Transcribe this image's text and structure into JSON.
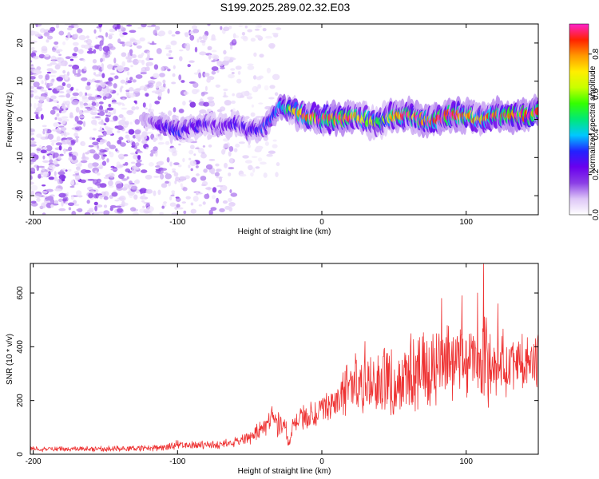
{
  "title": "S199.2025.289.02.32.E03",
  "colors": {
    "snr_line": "#ee3333",
    "axis": "#000000",
    "colormap": [
      "#ffffff",
      "#ddc6f7",
      "#8b3fe6",
      "#6a00ee",
      "#2222ff",
      "#00c8ff",
      "#00e878",
      "#33ff00",
      "#c8ff00",
      "#ffee00",
      "#ff9900",
      "#ff2200",
      "#ff22cc"
    ]
  },
  "chart_data": [
    {
      "type": "heatmap",
      "name": "spectrogram",
      "title": "S199.2025.289.02.32.E03",
      "xlabel": "Height of straight line (km)",
      "ylabel": "Frequency (Hz)",
      "xlim": [
        -202,
        150
      ],
      "ylim": [
        -25,
        25
      ],
      "xticks": [
        -200,
        -100,
        0,
        100
      ],
      "xtick_labels": [
        "-200",
        "-100",
        "0",
        "100"
      ],
      "yticks": [
        -20,
        -10,
        0,
        10,
        20
      ],
      "ytick_labels": [
        "-20",
        "-10",
        "0",
        "10",
        "20"
      ],
      "colorbar": {
        "label": "Normalized spectral amplitude",
        "range": [
          0,
          0.95
        ],
        "ticks": [
          0,
          0.2,
          0.4,
          0.6,
          0.8
        ],
        "tick_labels": [
          "0.0",
          "0.2",
          "0.4",
          "0.6",
          "0.8"
        ]
      },
      "ridge": {
        "description": "dominant frequency band near 0 Hz",
        "x": [
          -200,
          -120,
          -110,
          -100,
          -90,
          -80,
          -70,
          -60,
          -50,
          -40,
          -30,
          -20,
          -10,
          0,
          10,
          20,
          30,
          40,
          50,
          60,
          70,
          80,
          90,
          100,
          110,
          120,
          130,
          140,
          150
        ],
        "freq": [
          0,
          0,
          -2,
          -3,
          -2,
          -1,
          -2,
          -1,
          -3,
          -2,
          3,
          2,
          1,
          0,
          0,
          1,
          0,
          -1,
          1,
          1,
          0,
          0,
          1,
          1,
          0,
          1,
          1,
          1,
          2
        ],
        "peak_amplitude": [
          0.0,
          0.1,
          0.25,
          0.3,
          0.25,
          0.25,
          0.2,
          0.25,
          0.25,
          0.3,
          0.35,
          0.6,
          0.85,
          0.85,
          0.9,
          0.9,
          0.7,
          0.5,
          0.85,
          0.85,
          0.85,
          0.85,
          0.9,
          0.85,
          0.7,
          0.85,
          0.9,
          0.9,
          0.9
        ]
      },
      "noise_regions": [
        {
          "x_range": [
            -202,
            -120
          ],
          "freq_range": [
            -25,
            25
          ],
          "level": "dense"
        },
        {
          "x_range": [
            -120,
            -60
          ],
          "freq_range": [
            -25,
            25
          ],
          "level": "sparse"
        },
        {
          "x_range": [
            -60,
            -30
          ],
          "freq_range": [
            -15,
            25
          ],
          "level": "faint"
        }
      ]
    },
    {
      "type": "line",
      "name": "snr",
      "xlabel": "Height of straight line (km)",
      "ylabel": "SNR (10 * v/v)",
      "xlim": [
        -202,
        150
      ],
      "ylim": [
        0,
        710
      ],
      "xticks": [
        -200,
        -100,
        0,
        100
      ],
      "xtick_labels": [
        "-200",
        "-100",
        "0",
        "100"
      ],
      "yticks": [
        0,
        200,
        400,
        600
      ],
      "ytick_labels": [
        "0",
        "200",
        "400",
        "600"
      ],
      "series": [
        {
          "name": "SNR",
          "x": [
            -200,
            -180,
            -160,
            -140,
            -120,
            -110,
            -100,
            -90,
            -80,
            -70,
            -60,
            -50,
            -40,
            -35,
            -30,
            -25,
            -23,
            -20,
            -15,
            -10,
            -5,
            0,
            5,
            10,
            15,
            20,
            25,
            30,
            35,
            40,
            45,
            50,
            55,
            60,
            65,
            70,
            75,
            80,
            85,
            90,
            95,
            100,
            105,
            110,
            112,
            115,
            120,
            125,
            130,
            135,
            140,
            145,
            150
          ],
          "mean": [
            20,
            20,
            20,
            20,
            22,
            25,
            35,
            35,
            35,
            35,
            45,
            60,
            100,
            140,
            110,
            100,
            30,
            110,
            130,
            140,
            150,
            170,
            180,
            200,
            220,
            260,
            280,
            250,
            260,
            270,
            280,
            260,
            300,
            290,
            310,
            320,
            300,
            330,
            320,
            330,
            340,
            330,
            340,
            320,
            340,
            330,
            330,
            340,
            330,
            340,
            330,
            340,
            350
          ],
          "amplitude": [
            10,
            10,
            10,
            10,
            10,
            12,
            18,
            15,
            15,
            15,
            18,
            25,
            40,
            50,
            45,
            40,
            15,
            40,
            50,
            60,
            50,
            50,
            55,
            60,
            80,
            100,
            110,
            110,
            120,
            120,
            130,
            130,
            130,
            140,
            140,
            140,
            140,
            140,
            150,
            150,
            150,
            150,
            150,
            150,
            200,
            150,
            130,
            120,
            110,
            110,
            100,
            100,
            90
          ],
          "peaks": [
            {
              "x": 112,
              "y": 710
            },
            {
              "x": 108,
              "y": 600
            },
            {
              "x": 97,
              "y": 590
            },
            {
              "x": 83,
              "y": 580
            },
            {
              "x": 30,
              "y": 420
            },
            {
              "x": 122,
              "y": 560
            }
          ]
        }
      ]
    }
  ]
}
